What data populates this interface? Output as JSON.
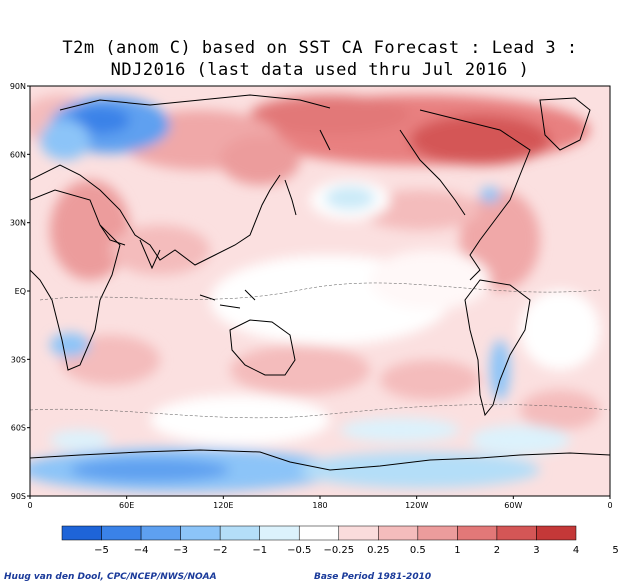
{
  "title": {
    "line1": "T2m (anom C) based on SST CA Forecast : Lead 3 :",
    "line2": "NDJ2016 (last data used thru Jul 2016 )"
  },
  "axes": {
    "lat_ticks": [
      "90N",
      "60N",
      "30N",
      "EQ",
      "30S",
      "60S",
      "90S"
    ],
    "lon_ticks": [
      "0",
      "60E",
      "120E",
      "180",
      "120W",
      "60W",
      "0"
    ]
  },
  "colorbar": {
    "labels": [
      "−5",
      "−4",
      "−3",
      "−2",
      "−1",
      "−0.5",
      "−0.25",
      "0.25",
      "0.5",
      "1",
      "2",
      "3",
      "4",
      "5"
    ],
    "colors": [
      "#1e64d8",
      "#3a82e8",
      "#5ea0f0",
      "#8cc4f8",
      "#b4def8",
      "#dcf2fc",
      "#ffffff",
      "#fadcdc",
      "#f4bcbc",
      "#ec9c9c",
      "#e27878",
      "#d45656",
      "#c43838"
    ]
  },
  "footer": {
    "credit": "Huug van den Dool, CPC/NCEP/NWS/NOAA",
    "base_period": "Base Period 1981-2010"
  }
}
